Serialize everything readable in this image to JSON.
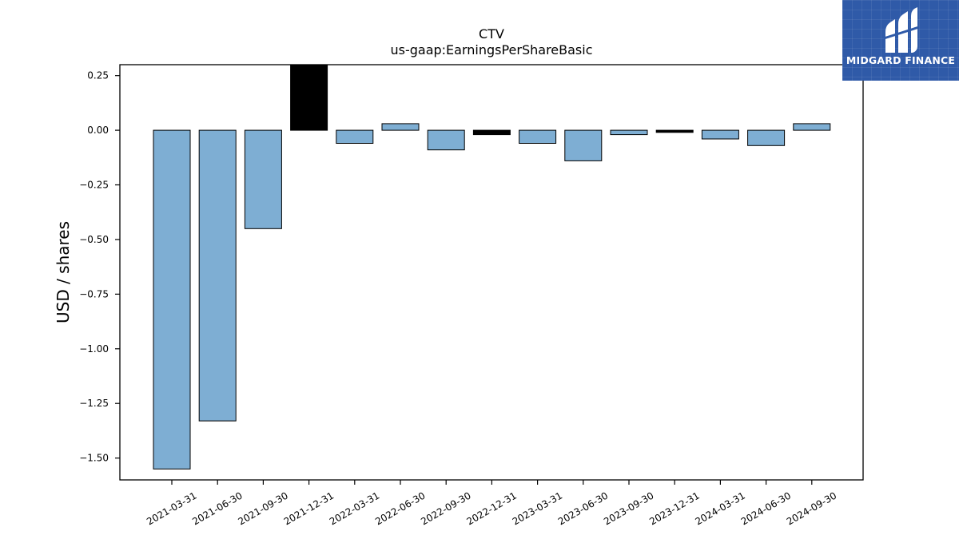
{
  "chart_data": {
    "type": "bar",
    "title": "CTV",
    "subtitle": "us-gaap:EarningsPerShareBasic",
    "ylabel": "USD / shares",
    "xlabel": "",
    "ylim": [
      -1.6,
      0.3
    ],
    "yticks": [
      0.25,
      0.0,
      -0.25,
      -0.5,
      -0.75,
      -1.0,
      -1.25,
      -1.5
    ],
    "ytick_labels": [
      "0.25",
      "0.00",
      "−0.25",
      "−0.50",
      "−0.75",
      "−1.00",
      "−1.25",
      "−1.50"
    ],
    "categories": [
      "2021-03-31",
      "2021-06-30",
      "2021-09-30",
      "2021-12-31",
      "2022-03-31",
      "2022-06-30",
      "2022-09-30",
      "2022-12-31",
      "2023-03-31",
      "2023-06-30",
      "2023-09-30",
      "2023-12-31",
      "2024-03-31",
      "2024-06-30",
      "2024-09-30"
    ],
    "values": [
      -1.55,
      -1.33,
      -0.45,
      0.33,
      -0.06,
      0.03,
      -0.09,
      -0.02,
      -0.06,
      -0.14,
      -0.02,
      -0.01,
      -0.04,
      -0.07,
      0.03
    ],
    "bar_colors": [
      "#7eaed3",
      "#7eaed3",
      "#7eaed3",
      "#000000",
      "#7eaed3",
      "#7eaed3",
      "#7eaed3",
      "#000000",
      "#7eaed3",
      "#7eaed3",
      "#7eaed3",
      "#000000",
      "#7eaed3",
      "#7eaed3",
      "#7eaed3"
    ],
    "grid": false,
    "legend": "none"
  },
  "logo": {
    "text": "MIDGARD FINANCE",
    "background": "#2f5aa8"
  }
}
